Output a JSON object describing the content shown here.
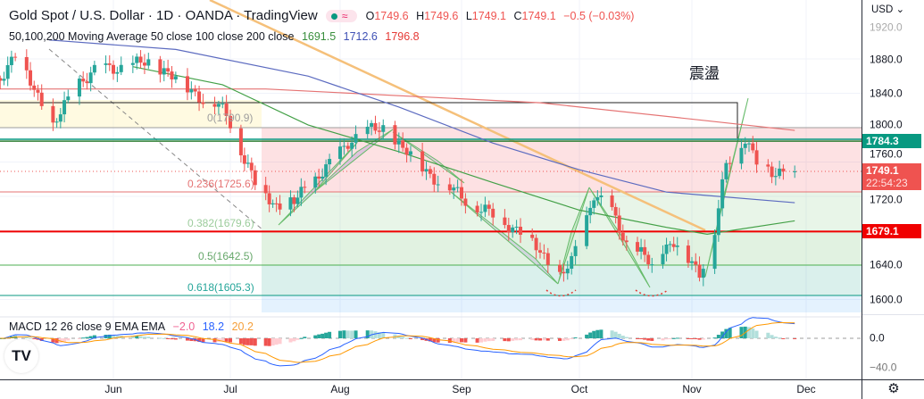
{
  "header": {
    "title": "Gold Spot / U.S. Dollar · 1D · OANDA · TradingView",
    "status_badge": "≈",
    "ohlc": {
      "o_label": "O",
      "o": "1749.6",
      "h_label": "H",
      "h": "1749.6",
      "l_label": "L",
      "l": "1749.1",
      "c_label": "C",
      "c": "1749.1",
      "change": "−0.5 (−0.03%)"
    }
  },
  "ma_legend": {
    "label": "50,100,200 Moving Average 50 close 100 close 200 close",
    "ma50": "1691.5",
    "ma100": "1712.6",
    "ma200": "1796.8"
  },
  "macd_legend": {
    "label": "MACD 12 26 close 9 EMA EMA",
    "hist": "−2.0",
    "macd": "18.2",
    "signal": "20.2"
  },
  "annotation": "震盪",
  "fib_labels": [
    "0(1790.9)",
    "0.236(1725.6)",
    "0.382(1679.6)",
    "0.5(1642.5)",
    "0.618(1605.3)"
  ],
  "price_axis": {
    "currency": "USD",
    "ticks": [
      "1920.0",
      "1880.0",
      "1840.0",
      "1800.0",
      "1760.0",
      "1720.0",
      "1640.0",
      "1600.0"
    ],
    "macd_ticks": [
      "0.0",
      "−40.0"
    ],
    "tag_resistance": "1784.3",
    "tag_last": "1749.1",
    "tag_countdown": "22:54:23",
    "tag_support": "1679.1"
  },
  "time_axis": [
    "Jun",
    "Jul",
    "Aug",
    "Sep",
    "Oct",
    "Nov",
    "Dec"
  ],
  "logo": "TV",
  "colors": {
    "up": "#26a69a",
    "down": "#ef5350",
    "ma50": "#43a047",
    "ma100": "#5c6bc0",
    "ma200": "#e57373",
    "resistance": "#089981",
    "support": "#f00000",
    "last": "#ef5350"
  },
  "chart_data": {
    "type": "candlestick",
    "title": "Gold Spot / U.S. Dollar · 1D · OANDA",
    "ylim": [
      1585,
      1930
    ],
    "close_keypoints": [
      [
        "2022-05-02",
        1860
      ],
      [
        "2022-05-06",
        1885
      ],
      [
        "2022-05-13",
        1830
      ],
      [
        "2022-05-16",
        1800
      ],
      [
        "2022-05-23",
        1855
      ],
      [
        "2022-05-27",
        1865
      ],
      [
        "2022-06-01",
        1870
      ],
      [
        "2022-06-10",
        1875
      ],
      [
        "2022-06-15",
        1865
      ],
      [
        "2022-06-20",
        1845
      ],
      [
        "2022-06-24",
        1835
      ],
      [
        "2022-06-28",
        1825
      ],
      [
        "2022-07-01",
        1805
      ],
      [
        "2022-07-05",
        1765
      ],
      [
        "2022-07-08",
        1735
      ],
      [
        "2022-07-14",
        1710
      ],
      [
        "2022-07-19",
        1712
      ],
      [
        "2022-07-22",
        1730
      ],
      [
        "2022-07-29",
        1755
      ],
      [
        "2022-08-03",
        1785
      ],
      [
        "2022-08-08",
        1795
      ],
      [
        "2022-08-12",
        1800
      ],
      [
        "2022-08-17",
        1775
      ],
      [
        "2022-08-22",
        1755
      ],
      [
        "2022-08-26",
        1738
      ],
      [
        "2022-09-01",
        1720
      ],
      [
        "2022-09-06",
        1705
      ],
      [
        "2022-09-12",
        1690
      ],
      [
        "2022-09-16",
        1680
      ],
      [
        "2022-09-20",
        1660
      ],
      [
        "2022-09-26",
        1628
      ],
      [
        "2022-09-29",
        1642
      ],
      [
        "2022-10-03",
        1695
      ],
      [
        "2022-10-05",
        1725
      ],
      [
        "2022-10-10",
        1700
      ],
      [
        "2022-10-14",
        1665
      ],
      [
        "2022-10-19",
        1650
      ],
      [
        "2022-10-21",
        1635
      ],
      [
        "2022-10-24",
        1660
      ],
      [
        "2022-10-27",
        1668
      ],
      [
        "2022-10-31",
        1645
      ],
      [
        "2022-11-03",
        1632
      ],
      [
        "2022-11-07",
        1680
      ],
      [
        "2022-11-10",
        1755
      ],
      [
        "2022-11-15",
        1790
      ],
      [
        "2022-11-18",
        1760
      ],
      [
        "2022-11-23",
        1745
      ],
      [
        "2022-11-25",
        1755
      ],
      [
        "2022-11-28",
        1749.1
      ]
    ],
    "ma50": [
      [
        "2022-06-06",
        1871
      ],
      [
        "2022-06-29",
        1850
      ],
      [
        "2022-07-23",
        1803
      ],
      [
        "2022-08-16",
        1772
      ],
      [
        "2022-09-09",
        1736
      ],
      [
        "2022-10-01",
        1704
      ],
      [
        "2022-10-25",
        1684
      ],
      [
        "2022-11-05",
        1676
      ],
      [
        "2022-11-28",
        1691.5
      ]
    ],
    "ma100": [
      [
        "2022-05-15",
        1902
      ],
      [
        "2022-06-17",
        1891
      ],
      [
        "2022-07-23",
        1860
      ],
      [
        "2022-08-16",
        1824
      ],
      [
        "2022-09-09",
        1782
      ],
      [
        "2022-10-01",
        1751
      ],
      [
        "2022-10-25",
        1725
      ],
      [
        "2022-11-28",
        1712.6
      ]
    ],
    "ma200": [
      [
        "2022-05-01",
        1845
      ],
      [
        "2022-07-11",
        1845
      ],
      [
        "2022-09-21",
        1829
      ],
      [
        "2022-11-05",
        1808
      ],
      [
        "2022-11-28",
        1796.8
      ]
    ],
    "fib_levels": [
      1790.9,
      1725.6,
      1679.6,
      1642.5,
      1605.3
    ],
    "horizontal_levels": {
      "resistance": 1784.3,
      "last": 1749.1,
      "support": 1679.1
    }
  }
}
